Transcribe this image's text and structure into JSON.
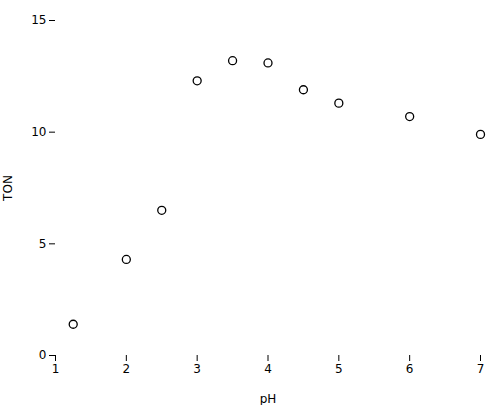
{
  "chart_data": {
    "type": "scatter",
    "x": [
      1.25,
      2.0,
      2.5,
      3.0,
      3.5,
      4.0,
      4.5,
      5.0,
      6.0,
      7.0
    ],
    "y": [
      1.4,
      4.3,
      6.5,
      12.3,
      13.2,
      13.1,
      11.9,
      11.3,
      10.7,
      9.9
    ],
    "xlabel": "pH",
    "ylabel": "TON",
    "xlim": [
      1,
      7
    ],
    "ylim": [
      0,
      15
    ],
    "xticks": [
      1,
      2,
      3,
      4,
      5,
      6,
      7
    ],
    "yticks": [
      0,
      5,
      10,
      15
    ],
    "marker": "circle",
    "color": "black",
    "grid": false
  }
}
